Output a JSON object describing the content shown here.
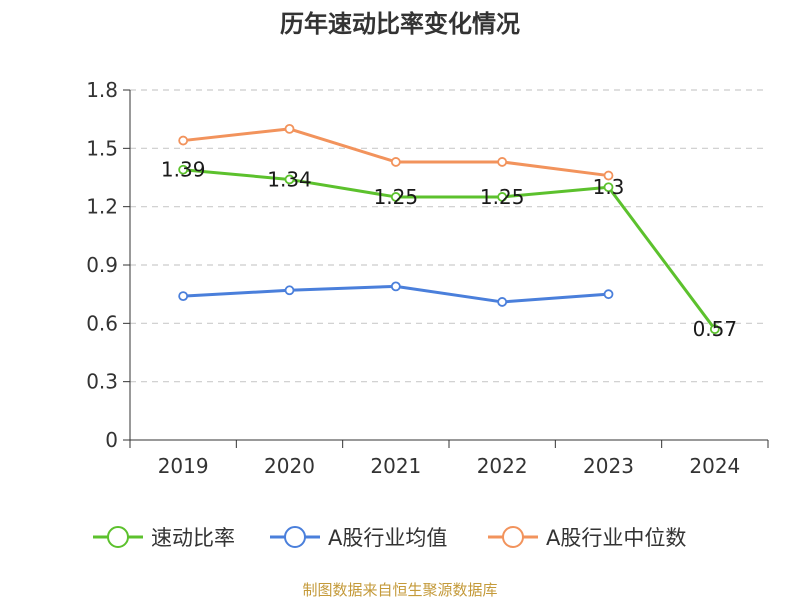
{
  "chart_data": {
    "type": "line",
    "title": "历年速动比率变化情况",
    "categories": [
      "2019",
      "2020",
      "2021",
      "2022",
      "2023",
      "2024"
    ],
    "ylim": [
      0,
      1.8
    ],
    "yticks": [
      "0",
      "0.3",
      "0.6",
      "0.9",
      "1.2",
      "1.5",
      "1.8"
    ],
    "grid": true,
    "legend_position": "bottom",
    "series": [
      {
        "name": "速动比率",
        "color": "#5cc12d",
        "values": [
          1.39,
          1.34,
          1.25,
          1.25,
          1.3,
          0.57
        ],
        "labels": [
          "1.39",
          "1.34",
          "1.25",
          "1.25",
          "1.3",
          "0.57"
        ]
      },
      {
        "name": "A股行业均值",
        "color": "#4a7fdb",
        "values": [
          0.74,
          0.77,
          0.79,
          0.71,
          0.75,
          null
        ]
      },
      {
        "name": "A股行业中位数",
        "color": "#f2935c",
        "values": [
          1.54,
          1.6,
          1.43,
          1.43,
          1.36,
          null
        ]
      }
    ]
  },
  "source": "制图数据来自恒生聚源数据库"
}
